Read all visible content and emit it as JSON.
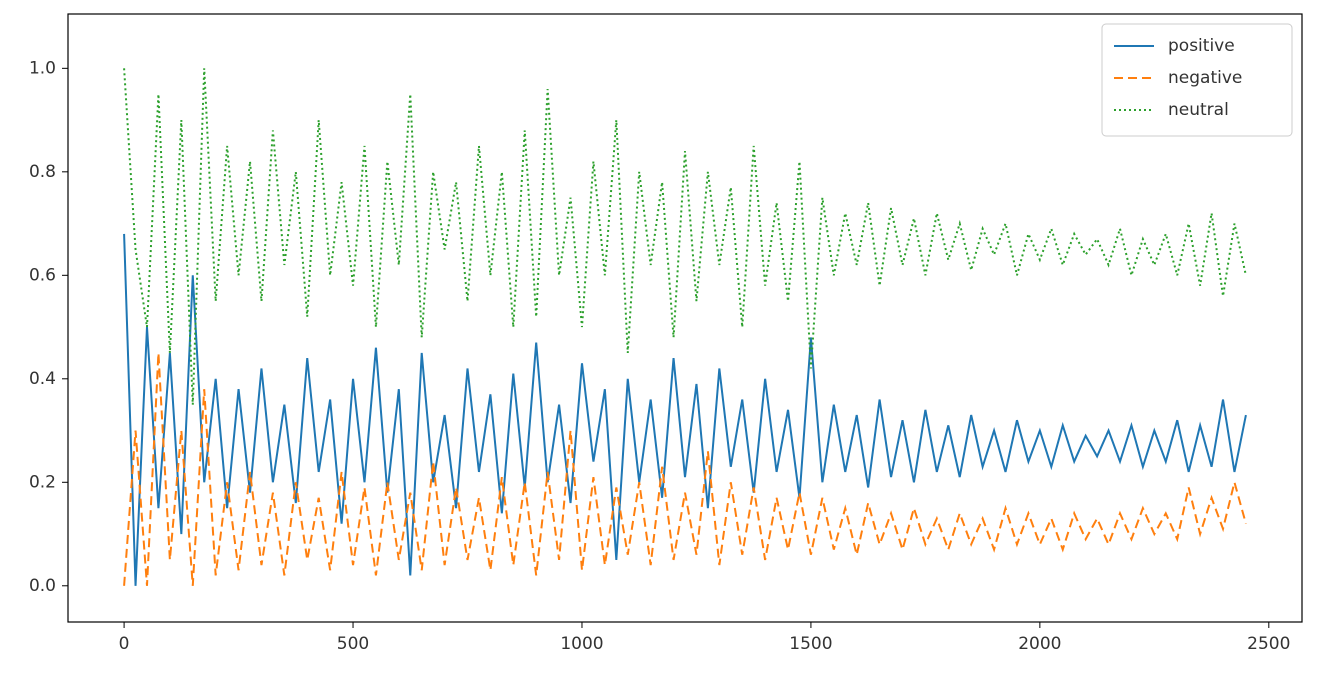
{
  "chart_data": {
    "type": "line",
    "x": [
      0,
      25,
      50,
      75,
      100,
      125,
      150,
      175,
      200,
      225,
      250,
      275,
      300,
      325,
      350,
      375,
      400,
      425,
      450,
      475,
      500,
      525,
      550,
      575,
      600,
      625,
      650,
      675,
      700,
      725,
      750,
      775,
      800,
      825,
      850,
      875,
      900,
      925,
      950,
      975,
      1000,
      1025,
      1050,
      1075,
      1100,
      1125,
      1150,
      1175,
      1200,
      1225,
      1250,
      1275,
      1300,
      1325,
      1350,
      1375,
      1400,
      1425,
      1450,
      1475,
      1500,
      1525,
      1550,
      1575,
      1600,
      1625,
      1650,
      1675,
      1700,
      1725,
      1750,
      1775,
      1800,
      1825,
      1850,
      1875,
      1900,
      1925,
      1950,
      1975,
      2000,
      2025,
      2050,
      2075,
      2100,
      2125,
      2150,
      2175,
      2200,
      2225,
      2250,
      2275,
      2300,
      2325,
      2350,
      2375,
      2400,
      2425,
      2450
    ],
    "series": [
      {
        "name": "positive",
        "color": "#1f77b4",
        "linestyle": "solid",
        "values": [
          0.68,
          0.0,
          0.5,
          0.15,
          0.45,
          0.1,
          0.6,
          0.2,
          0.4,
          0.15,
          0.38,
          0.18,
          0.42,
          0.2,
          0.35,
          0.16,
          0.44,
          0.22,
          0.36,
          0.12,
          0.4,
          0.2,
          0.46,
          0.18,
          0.38,
          0.02,
          0.45,
          0.2,
          0.33,
          0.15,
          0.42,
          0.22,
          0.37,
          0.14,
          0.41,
          0.19,
          0.47,
          0.2,
          0.35,
          0.16,
          0.43,
          0.24,
          0.38,
          0.05,
          0.4,
          0.2,
          0.36,
          0.17,
          0.44,
          0.21,
          0.39,
          0.15,
          0.42,
          0.23,
          0.36,
          0.18,
          0.4,
          0.22,
          0.34,
          0.17,
          0.48,
          0.2,
          0.35,
          0.22,
          0.33,
          0.19,
          0.36,
          0.21,
          0.32,
          0.2,
          0.34,
          0.22,
          0.31,
          0.21,
          0.33,
          0.23,
          0.3,
          0.22,
          0.32,
          0.24,
          0.3,
          0.23,
          0.31,
          0.24,
          0.29,
          0.25,
          0.3,
          0.24,
          0.31,
          0.23,
          0.3,
          0.24,
          0.32,
          0.22,
          0.31,
          0.23,
          0.36,
          0.22,
          0.33
        ]
      },
      {
        "name": "negative",
        "color": "#ff7f0e",
        "linestyle": "dashed",
        "values": [
          0.0,
          0.3,
          0.0,
          0.45,
          0.05,
          0.3,
          0.0,
          0.38,
          0.02,
          0.2,
          0.03,
          0.22,
          0.04,
          0.18,
          0.02,
          0.2,
          0.05,
          0.17,
          0.03,
          0.22,
          0.04,
          0.19,
          0.02,
          0.2,
          0.05,
          0.18,
          0.03,
          0.24,
          0.04,
          0.19,
          0.05,
          0.17,
          0.03,
          0.21,
          0.04,
          0.2,
          0.02,
          0.22,
          0.05,
          0.3,
          0.03,
          0.21,
          0.04,
          0.19,
          0.06,
          0.2,
          0.04,
          0.23,
          0.05,
          0.18,
          0.06,
          0.26,
          0.04,
          0.2,
          0.06,
          0.19,
          0.05,
          0.17,
          0.07,
          0.18,
          0.06,
          0.17,
          0.07,
          0.15,
          0.06,
          0.16,
          0.08,
          0.14,
          0.07,
          0.15,
          0.08,
          0.13,
          0.07,
          0.14,
          0.08,
          0.13,
          0.07,
          0.15,
          0.08,
          0.14,
          0.08,
          0.13,
          0.07,
          0.14,
          0.09,
          0.13,
          0.08,
          0.14,
          0.09,
          0.15,
          0.1,
          0.14,
          0.09,
          0.19,
          0.1,
          0.17,
          0.11,
          0.2,
          0.12
        ]
      },
      {
        "name": "neutral",
        "color": "#2ca02c",
        "linestyle": "dotted",
        "values": [
          1.0,
          0.65,
          0.5,
          0.95,
          0.45,
          0.9,
          0.35,
          1.0,
          0.55,
          0.85,
          0.6,
          0.82,
          0.55,
          0.88,
          0.62,
          0.8,
          0.52,
          0.9,
          0.6,
          0.78,
          0.58,
          0.85,
          0.5,
          0.82,
          0.62,
          0.95,
          0.48,
          0.8,
          0.65,
          0.78,
          0.55,
          0.85,
          0.6,
          0.8,
          0.5,
          0.88,
          0.52,
          0.96,
          0.6,
          0.75,
          0.5,
          0.82,
          0.6,
          0.9,
          0.45,
          0.8,
          0.62,
          0.78,
          0.48,
          0.84,
          0.55,
          0.8,
          0.62,
          0.77,
          0.5,
          0.85,
          0.58,
          0.74,
          0.55,
          0.82,
          0.42,
          0.75,
          0.6,
          0.72,
          0.62,
          0.74,
          0.58,
          0.73,
          0.62,
          0.71,
          0.6,
          0.72,
          0.63,
          0.7,
          0.61,
          0.69,
          0.64,
          0.7,
          0.6,
          0.68,
          0.63,
          0.69,
          0.62,
          0.68,
          0.64,
          0.67,
          0.62,
          0.69,
          0.6,
          0.67,
          0.62,
          0.68,
          0.6,
          0.7,
          0.58,
          0.72,
          0.56,
          0.7,
          0.6
        ]
      }
    ],
    "xlim": [
      -122.5,
      2572.5
    ],
    "xticks": [
      0,
      500,
      1000,
      1500,
      2000,
      2500
    ],
    "ylim": [
      -0.07,
      1.105
    ],
    "yticks": [
      {
        "value": 0,
        "label": "0.0"
      },
      0.2,
      0.4,
      0.6,
      0.8,
      {
        "value": 1,
        "label": "1.0"
      }
    ],
    "legend": "upper right"
  }
}
